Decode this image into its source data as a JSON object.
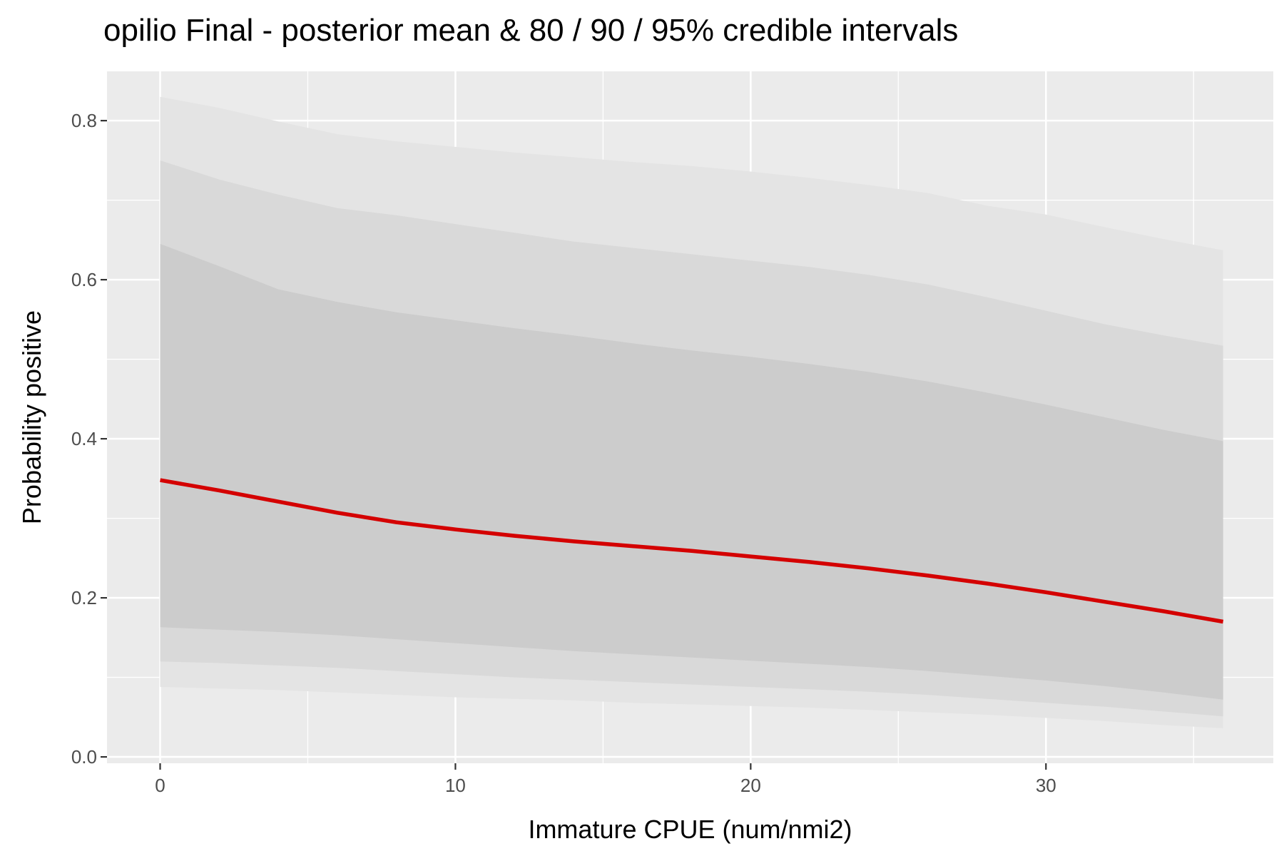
{
  "chart_data": {
    "type": "line",
    "title": "opilio Final - posterior mean & 80 / 90 / 95% credible intervals",
    "xlabel": "Immature CPUE (num/nmi2)",
    "ylabel": "Probability positive",
    "xlim": [
      -1.8,
      37.7
    ],
    "ylim": [
      -0.008,
      0.862
    ],
    "x_ticks": [
      0,
      10,
      20,
      30
    ],
    "x_tick_labels": [
      "0",
      "10",
      "20",
      "30"
    ],
    "y_ticks": [
      0.0,
      0.2,
      0.4,
      0.6,
      0.8
    ],
    "y_tick_labels": [
      "0.0",
      "0.2",
      "0.4",
      "0.6",
      "0.8"
    ],
    "grid": true,
    "colors": {
      "panel": "#ebebeb",
      "grid": "#ffffff",
      "band_95": "#e4e4e4",
      "band_90": "#d9d9d9",
      "band_80": "#cccccc",
      "mean_line": "#d40000"
    },
    "x": [
      0,
      2,
      4,
      6,
      8,
      10,
      12,
      14,
      16,
      18,
      20,
      22,
      24,
      26,
      28,
      30,
      32,
      34,
      36
    ],
    "series": [
      {
        "name": "mean",
        "values": [
          0.348,
          0.335,
          0.321,
          0.307,
          0.295,
          0.286,
          0.278,
          0.271,
          0.265,
          0.259,
          0.252,
          0.245,
          0.237,
          0.228,
          0.218,
          0.207,
          0.195,
          0.183,
          0.17
        ]
      },
      {
        "name": "80% lower",
        "values": [
          0.163,
          0.16,
          0.157,
          0.153,
          0.148,
          0.143,
          0.138,
          0.133,
          0.129,
          0.125,
          0.121,
          0.117,
          0.113,
          0.108,
          0.102,
          0.096,
          0.089,
          0.081,
          0.072
        ]
      },
      {
        "name": "80% upper",
        "values": [
          0.645,
          0.617,
          0.588,
          0.572,
          0.559,
          0.549,
          0.539,
          0.53,
          0.52,
          0.511,
          0.503,
          0.494,
          0.484,
          0.472,
          0.458,
          0.443,
          0.427,
          0.411,
          0.397
        ]
      },
      {
        "name": "90% lower",
        "values": [
          0.12,
          0.118,
          0.115,
          0.112,
          0.108,
          0.104,
          0.1,
          0.097,
          0.094,
          0.091,
          0.088,
          0.085,
          0.082,
          0.078,
          0.073,
          0.068,
          0.063,
          0.057,
          0.051
        ]
      },
      {
        "name": "90% upper",
        "values": [
          0.75,
          0.726,
          0.707,
          0.69,
          0.681,
          0.67,
          0.659,
          0.648,
          0.64,
          0.632,
          0.624,
          0.616,
          0.606,
          0.594,
          0.578,
          0.561,
          0.544,
          0.53,
          0.517
        ]
      },
      {
        "name": "95% lower",
        "values": [
          0.088,
          0.086,
          0.084,
          0.081,
          0.078,
          0.075,
          0.073,
          0.071,
          0.068,
          0.066,
          0.064,
          0.062,
          0.059,
          0.056,
          0.053,
          0.049,
          0.045,
          0.04,
          0.036
        ]
      },
      {
        "name": "95% upper",
        "values": [
          0.83,
          0.816,
          0.799,
          0.783,
          0.774,
          0.767,
          0.76,
          0.754,
          0.748,
          0.743,
          0.736,
          0.728,
          0.719,
          0.709,
          0.693,
          0.682,
          0.666,
          0.651,
          0.637
        ]
      }
    ]
  }
}
